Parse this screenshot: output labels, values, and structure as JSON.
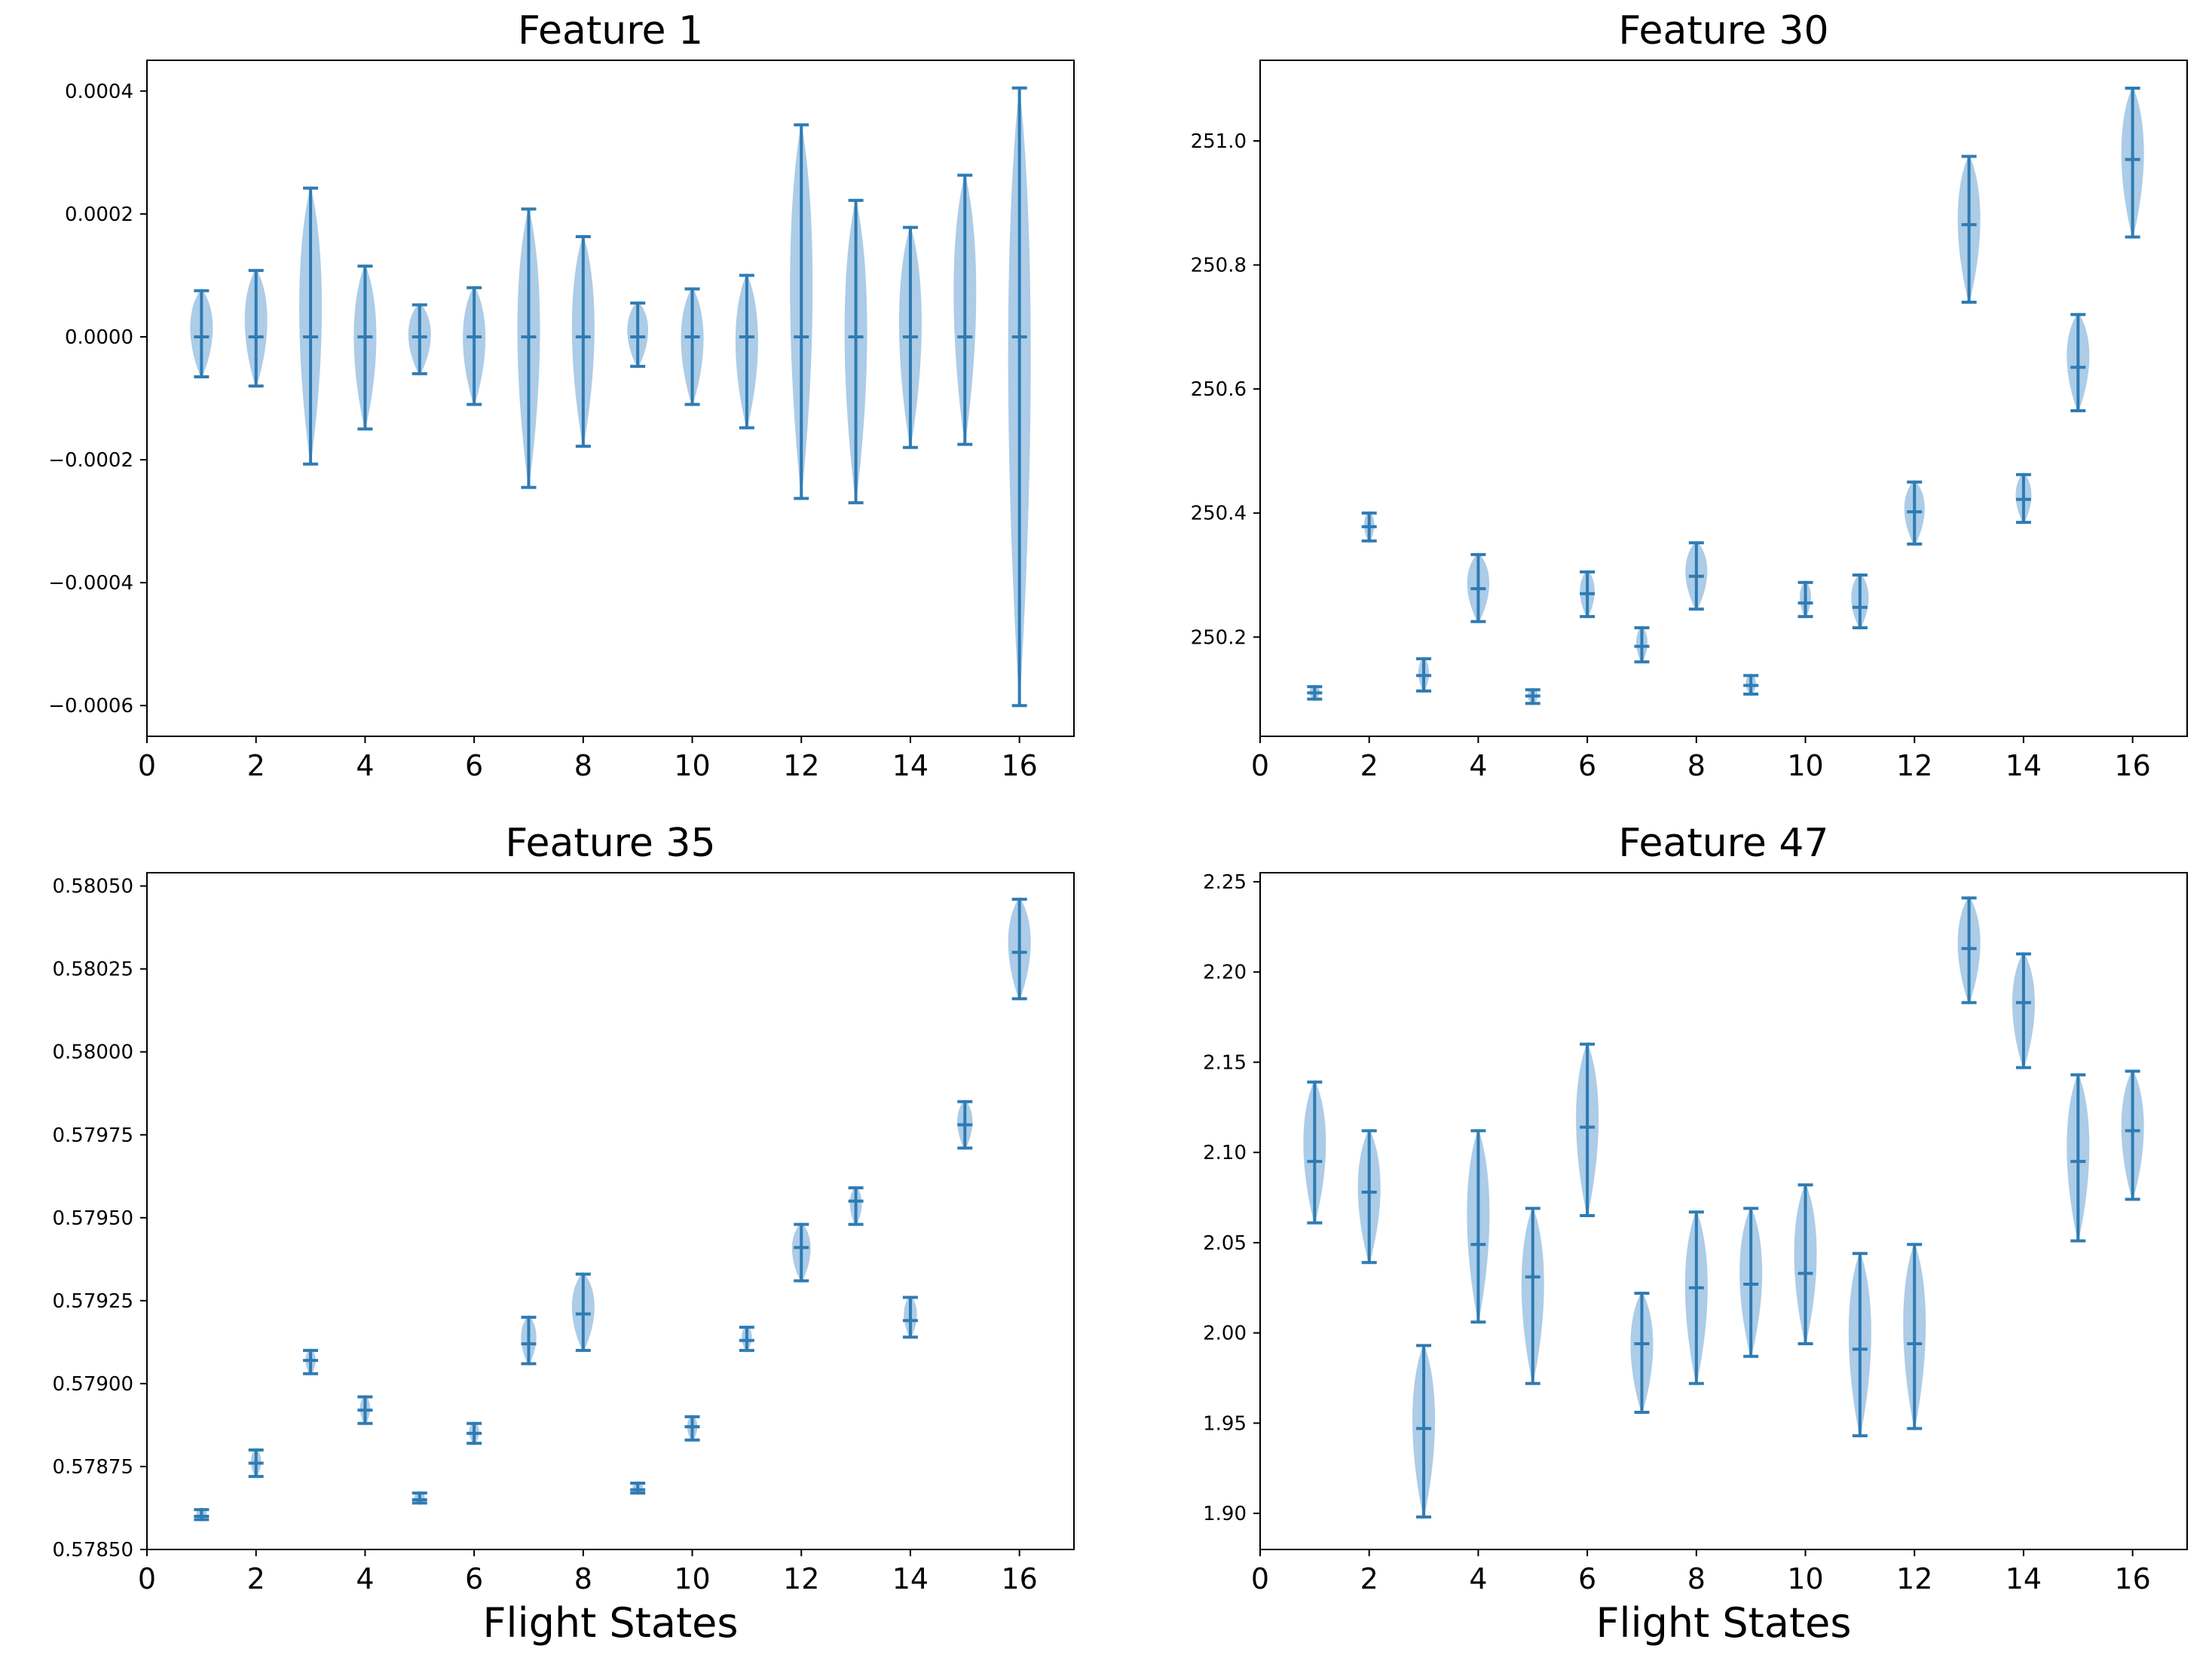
{
  "colors": {
    "violin_fill": "#9dc3e3",
    "violin_line": "#2f7bb3",
    "axes": "#000000"
  },
  "chart_data": [
    {
      "type": "violin",
      "title": "Feature 1",
      "xlabel": "",
      "ylabel": "",
      "xlim": [
        0,
        17
      ],
      "ylim": [
        -0.00065,
        0.00045
      ],
      "xticks": [
        0,
        2,
        4,
        6,
        8,
        10,
        12,
        14,
        16
      ],
      "yticks": [
        0.0004,
        0.0002,
        0.0,
        -0.0002,
        -0.0004,
        -0.0006
      ],
      "ytick_labels": [
        "0.0004",
        "0.0002",
        "0.0000",
        "−0.0002",
        "−0.0004",
        "−0.0006"
      ],
      "violins": [
        {
          "x": 1,
          "min": -6.5e-05,
          "max": 7.5e-05,
          "median": 0.0
        },
        {
          "x": 2,
          "min": -8e-05,
          "max": 0.000108,
          "median": 0.0
        },
        {
          "x": 3,
          "min": -0.000207,
          "max": 0.000242,
          "median": 0.0
        },
        {
          "x": 4,
          "min": -0.00015,
          "max": 0.000115,
          "median": 0.0
        },
        {
          "x": 5,
          "min": -6e-05,
          "max": 5.2e-05,
          "median": 0.0
        },
        {
          "x": 6,
          "min": -0.00011,
          "max": 8e-05,
          "median": 0.0
        },
        {
          "x": 7,
          "min": -0.000245,
          "max": 0.000208,
          "median": 0.0
        },
        {
          "x": 8,
          "min": -0.000178,
          "max": 0.000163,
          "median": 0.0
        },
        {
          "x": 9,
          "min": -4.8e-05,
          "max": 5.5e-05,
          "median": 0.0
        },
        {
          "x": 10,
          "min": -0.00011,
          "max": 7.8e-05,
          "median": 0.0
        },
        {
          "x": 11,
          "min": -0.000148,
          "max": 0.0001,
          "median": 0.0
        },
        {
          "x": 12,
          "min": -0.000263,
          "max": 0.000345,
          "median": 0.0
        },
        {
          "x": 13,
          "min": -0.00027,
          "max": 0.000222,
          "median": 0.0
        },
        {
          "x": 14,
          "min": -0.00018,
          "max": 0.000178,
          "median": 0.0
        },
        {
          "x": 15,
          "min": -0.000175,
          "max": 0.000263,
          "median": 0.0
        },
        {
          "x": 16,
          "min": -0.0006,
          "max": 0.000405,
          "median": 0.0
        }
      ]
    },
    {
      "type": "violin",
      "title": "Feature 30",
      "xlabel": "",
      "ylabel": "",
      "xlim": [
        0,
        17
      ],
      "ylim": [
        250.04,
        251.13
      ],
      "xticks": [
        0,
        2,
        4,
        6,
        8,
        10,
        12,
        14,
        16
      ],
      "yticks": [
        251.0,
        250.8,
        250.6,
        250.4,
        250.2
      ],
      "ytick_labels": [
        "251.0",
        "250.8",
        "250.6",
        "250.4",
        "250.2"
      ],
      "violins": [
        {
          "x": 1,
          "min": 250.1,
          "max": 250.12,
          "median": 250.11
        },
        {
          "x": 2,
          "min": 250.355,
          "max": 250.4,
          "median": 250.378
        },
        {
          "x": 3,
          "min": 250.113,
          "max": 250.165,
          "median": 250.138
        },
        {
          "x": 4,
          "min": 250.225,
          "max": 250.333,
          "median": 250.278
        },
        {
          "x": 5,
          "min": 250.093,
          "max": 250.115,
          "median": 250.105
        },
        {
          "x": 6,
          "min": 250.233,
          "max": 250.305,
          "median": 250.27
        },
        {
          "x": 7,
          "min": 250.16,
          "max": 250.215,
          "median": 250.185
        },
        {
          "x": 8,
          "min": 250.245,
          "max": 250.352,
          "median": 250.298
        },
        {
          "x": 9,
          "min": 250.108,
          "max": 250.138,
          "median": 250.122
        },
        {
          "x": 10,
          "min": 250.233,
          "max": 250.288,
          "median": 250.255
        },
        {
          "x": 11,
          "min": 250.215,
          "max": 250.3,
          "median": 250.248
        },
        {
          "x": 12,
          "min": 250.35,
          "max": 250.45,
          "median": 250.402
        },
        {
          "x": 13,
          "min": 250.74,
          "max": 250.975,
          "median": 250.865
        },
        {
          "x": 14,
          "min": 250.385,
          "max": 250.462,
          "median": 250.422
        },
        {
          "x": 15,
          "min": 250.565,
          "max": 250.72,
          "median": 250.635
        },
        {
          "x": 16,
          "min": 250.845,
          "max": 251.085,
          "median": 250.97
        }
      ]
    },
    {
      "type": "violin",
      "title": "Feature 35",
      "xlabel": "Flight States",
      "ylabel": "",
      "xlim": [
        0,
        17
      ],
      "ylim": [
        0.5785,
        0.58054
      ],
      "xticks": [
        0,
        2,
        4,
        6,
        8,
        10,
        12,
        14,
        16
      ],
      "yticks": [
        0.5805,
        0.58025,
        0.58,
        0.57975,
        0.5795,
        0.57925,
        0.579,
        0.57875,
        0.5785
      ],
      "ytick_labels": [
        "0.58050",
        "0.58025",
        "0.58000",
        "0.57975",
        "0.57950",
        "0.57925",
        "0.57900",
        "0.57875",
        "0.57850"
      ],
      "violins": [
        {
          "x": 1,
          "min": 0.57859,
          "max": 0.57862,
          "median": 0.5786
        },
        {
          "x": 2,
          "min": 0.57872,
          "max": 0.5788,
          "median": 0.57876
        },
        {
          "x": 3,
          "min": 0.57903,
          "max": 0.5791,
          "median": 0.57907
        },
        {
          "x": 4,
          "min": 0.57888,
          "max": 0.57896,
          "median": 0.57892
        },
        {
          "x": 5,
          "min": 0.57864,
          "max": 0.57867,
          "median": 0.57865
        },
        {
          "x": 6,
          "min": 0.57882,
          "max": 0.57888,
          "median": 0.57885
        },
        {
          "x": 7,
          "min": 0.57906,
          "max": 0.5792,
          "median": 0.57912
        },
        {
          "x": 8,
          "min": 0.5791,
          "max": 0.57933,
          "median": 0.57921
        },
        {
          "x": 9,
          "min": 0.57867,
          "max": 0.5787,
          "median": 0.57868
        },
        {
          "x": 10,
          "min": 0.57883,
          "max": 0.5789,
          "median": 0.57887
        },
        {
          "x": 11,
          "min": 0.5791,
          "max": 0.57917,
          "median": 0.57913
        },
        {
          "x": 12,
          "min": 0.57931,
          "max": 0.57948,
          "median": 0.57941
        },
        {
          "x": 13,
          "min": 0.57948,
          "max": 0.57959,
          "median": 0.57955
        },
        {
          "x": 14,
          "min": 0.57914,
          "max": 0.57926,
          "median": 0.57919
        },
        {
          "x": 15,
          "min": 0.57971,
          "max": 0.57985,
          "median": 0.57978
        },
        {
          "x": 16,
          "min": 0.58016,
          "max": 0.58046,
          "median": 0.5803
        }
      ]
    },
    {
      "type": "violin",
      "title": "Feature 47",
      "xlabel": "Flight States",
      "ylabel": "",
      "xlim": [
        0,
        17
      ],
      "ylim": [
        1.88,
        2.255
      ],
      "xticks": [
        0,
        2,
        4,
        6,
        8,
        10,
        12,
        14,
        16
      ],
      "yticks": [
        2.25,
        2.2,
        2.15,
        2.1,
        2.05,
        2.0,
        1.95,
        1.9
      ],
      "ytick_labels": [
        "2.25",
        "2.20",
        "2.15",
        "2.10",
        "2.05",
        "2.00",
        "1.95",
        "1.90"
      ],
      "violins": [
        {
          "x": 1,
          "min": 2.061,
          "max": 2.139,
          "median": 2.095
        },
        {
          "x": 2,
          "min": 2.039,
          "max": 2.112,
          "median": 2.078
        },
        {
          "x": 3,
          "min": 1.898,
          "max": 1.993,
          "median": 1.947
        },
        {
          "x": 4,
          "min": 2.006,
          "max": 2.112,
          "median": 2.049
        },
        {
          "x": 5,
          "min": 1.972,
          "max": 2.069,
          "median": 2.031
        },
        {
          "x": 6,
          "min": 2.065,
          "max": 2.16,
          "median": 2.114
        },
        {
          "x": 7,
          "min": 1.956,
          "max": 2.022,
          "median": 1.994
        },
        {
          "x": 8,
          "min": 1.972,
          "max": 2.067,
          "median": 2.025
        },
        {
          "x": 9,
          "min": 1.987,
          "max": 2.069,
          "median": 2.027
        },
        {
          "x": 10,
          "min": 1.994,
          "max": 2.082,
          "median": 2.033
        },
        {
          "x": 11,
          "min": 1.943,
          "max": 2.044,
          "median": 1.991
        },
        {
          "x": 12,
          "min": 1.947,
          "max": 2.049,
          "median": 1.994
        },
        {
          "x": 13,
          "min": 2.183,
          "max": 2.241,
          "median": 2.213
        },
        {
          "x": 14,
          "min": 2.147,
          "max": 2.21,
          "median": 2.183
        },
        {
          "x": 15,
          "min": 2.051,
          "max": 2.143,
          "median": 2.095
        },
        {
          "x": 16,
          "min": 2.074,
          "max": 2.145,
          "median": 2.112
        }
      ]
    }
  ]
}
